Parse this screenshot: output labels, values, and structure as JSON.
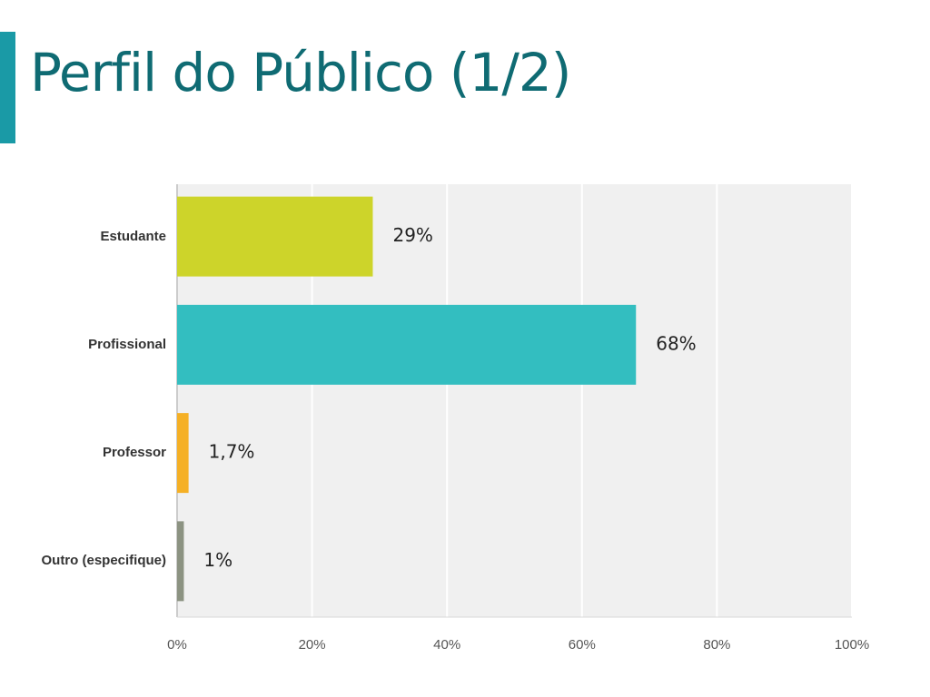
{
  "title": "Perfil do Público (1/2)",
  "chart_data": {
    "type": "hbar",
    "categories": [
      "Estudante",
      "Profissional",
      "Professor",
      "Outro (especifique)"
    ],
    "values": [
      29,
      68,
      1.7,
      1
    ],
    "value_labels": [
      "29%",
      "68%",
      "1,7%",
      "1%"
    ],
    "colors": [
      "#cdd42a",
      "#33bec0",
      "#f5b025",
      "#8c9382"
    ],
    "xlim": [
      0,
      100
    ],
    "xticks": [
      {
        "value": 0,
        "label": "0%"
      },
      {
        "value": 20,
        "label": "20%"
      },
      {
        "value": 40,
        "label": "40%"
      },
      {
        "value": 60,
        "label": "60%"
      },
      {
        "value": 80,
        "label": "80%"
      },
      {
        "value": 100,
        "label": "100%"
      }
    ],
    "grid": true
  }
}
